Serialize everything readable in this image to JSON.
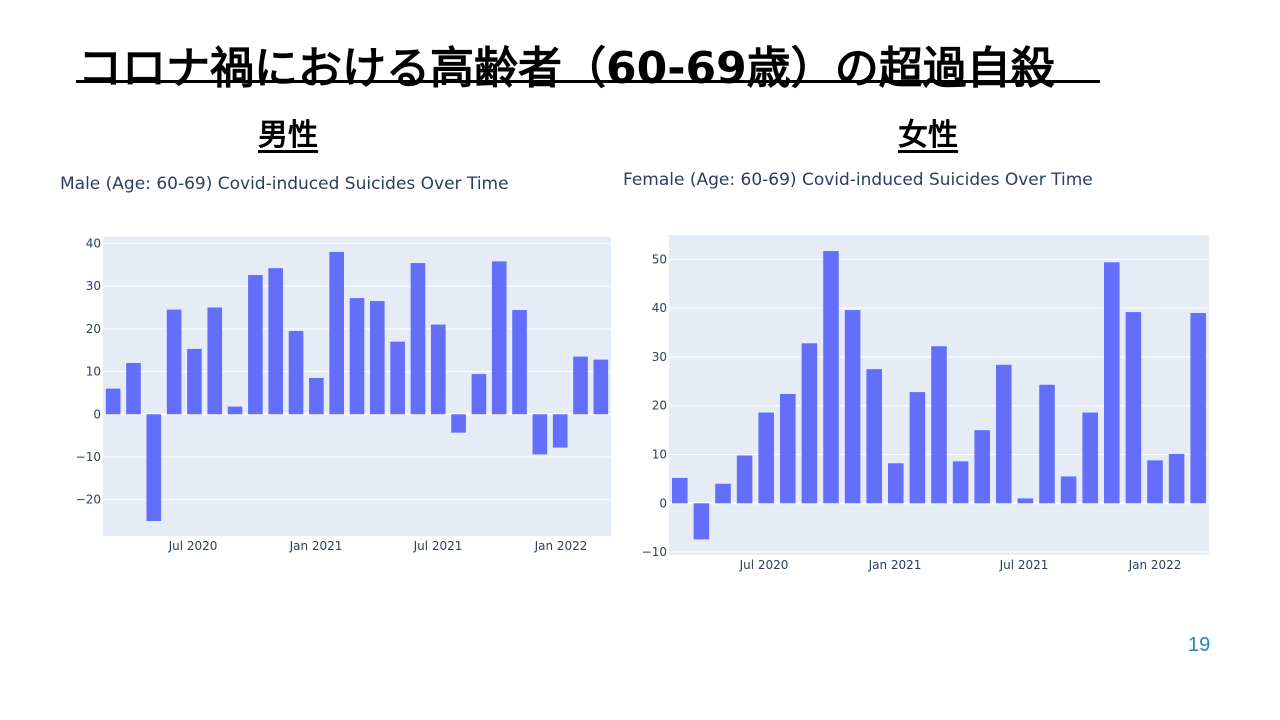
{
  "slide": {
    "title": "コロナ禍における高齢者（60-69歳）の超過自殺",
    "male_heading": "男性",
    "female_heading": "女性",
    "page_number": "19"
  },
  "chart_data": [
    {
      "type": "bar",
      "title": "Male (Age: 60-69) Covid-induced Suicides Over Time",
      "x_ticks": [
        "Jul 2020",
        "Jan 2021",
        "Jul 2021",
        "Jan 2022"
      ],
      "categories": [
        "2020-03",
        "2020-04",
        "2020-05",
        "2020-06",
        "2020-07",
        "2020-08",
        "2020-09",
        "2020-10",
        "2020-11",
        "2020-12",
        "2021-01",
        "2021-02",
        "2021-03",
        "2021-04",
        "2021-05",
        "2021-06",
        "2021-07",
        "2021-08",
        "2021-09",
        "2021-10",
        "2021-11",
        "2021-12",
        "2022-01",
        "2022-02",
        "2022-03"
      ],
      "values": [
        6,
        12,
        -25,
        24.5,
        15.3,
        25,
        1.8,
        32.6,
        34.2,
        19.5,
        8.5,
        38,
        27.2,
        26.5,
        17,
        35.4,
        21,
        -4.3,
        9.4,
        35.8,
        24.4,
        -9.4,
        -7.8,
        13.5,
        12.8
      ],
      "y_ticks": [
        -20,
        -10,
        0,
        10,
        20,
        30,
        40
      ],
      "ylim": [
        -28.5,
        41.5
      ],
      "bar_color": "#636efa",
      "plot_bg": "#e5ecf6"
    },
    {
      "type": "bar",
      "title": "Female (Age: 60-69) Covid-induced Suicides Over Time",
      "x_ticks": [
        "Jul 2020",
        "Jan 2021",
        "Jul 2021",
        "Jan 2022"
      ],
      "categories": [
        "2020-03",
        "2020-04",
        "2020-05",
        "2020-06",
        "2020-07",
        "2020-08",
        "2020-09",
        "2020-10",
        "2020-11",
        "2020-12",
        "2021-01",
        "2021-02",
        "2021-03",
        "2021-04",
        "2021-05",
        "2021-06",
        "2021-07",
        "2021-08",
        "2021-09",
        "2021-10",
        "2021-11",
        "2021-12",
        "2022-01",
        "2022-02",
        "2022-03"
      ],
      "values": [
        5.2,
        -7.4,
        4,
        9.8,
        18.6,
        22.4,
        32.8,
        51.7,
        39.6,
        27.5,
        8.2,
        22.8,
        32.2,
        8.6,
        15,
        28.4,
        1,
        24.3,
        5.5,
        18.6,
        49.4,
        39.2,
        8.8,
        10.1,
        39
      ]
    }
  ]
}
